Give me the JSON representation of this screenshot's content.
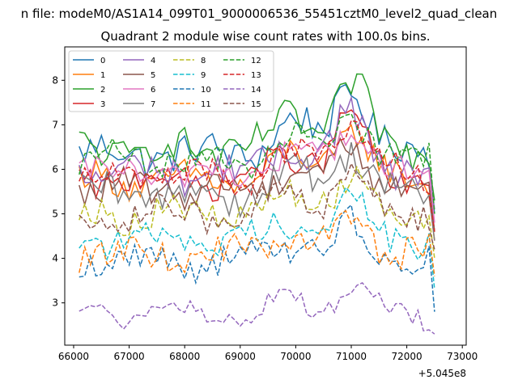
{
  "chart_data": {
    "type": "line",
    "suptitle": "n file: modeM0/AS1A14_099T01_9000006536_55451cztM0_level2_quad_clean",
    "title": "Quadrant 2 module wise count rates with 100.0s bins.",
    "xlabel": "",
    "ylabel": "",
    "offset_text": "+5.045e8",
    "xlim": [
      65840,
      73070
    ],
    "ylim": [
      2.05,
      8.75
    ],
    "xticks": [
      66000,
      67000,
      68000,
      69000,
      70000,
      71000,
      72000,
      73000
    ],
    "xtick_labels": [
      "66000",
      "67000",
      "68000",
      "69000",
      "70000",
      "71000",
      "72000",
      "73000"
    ],
    "yticks": [
      3,
      4,
      5,
      6,
      7,
      8
    ],
    "ytick_labels": [
      "3",
      "4",
      "5",
      "6",
      "7",
      "8"
    ],
    "grid": false,
    "legend_position": "upper-left",
    "legend_columns": 4,
    "x_start": 66100,
    "x_step": 100,
    "series": [
      {
        "name": "0",
        "color": "#1f77b4",
        "style": "solid",
        "base": 6.35,
        "amp": 0.35,
        "peak": 1.5,
        "end": 5.0
      },
      {
        "name": "1",
        "color": "#ff7f0e",
        "style": "solid",
        "base": 5.75,
        "amp": 0.3,
        "peak": 1.15,
        "end": 4.4
      },
      {
        "name": "2",
        "color": "#2ca02c",
        "style": "solid",
        "base": 6.45,
        "amp": 0.35,
        "peak": 1.45,
        "end": 5.3
      },
      {
        "name": "3",
        "color": "#d62728",
        "style": "solid",
        "base": 5.75,
        "amp": 0.3,
        "peak": 1.4,
        "end": 4.6
      },
      {
        "name": "4",
        "color": "#9467bd",
        "style": "solid",
        "base": 5.95,
        "amp": 0.35,
        "peak": 1.25,
        "end": 5.1
      },
      {
        "name": "5",
        "color": "#8c564b",
        "style": "solid",
        "base": 5.55,
        "amp": 0.3,
        "peak": 1.0,
        "end": 4.6
      },
      {
        "name": "6",
        "color": "#e377c2",
        "style": "solid",
        "base": 5.9,
        "amp": 0.3,
        "peak": 1.0,
        "end": 4.8
      },
      {
        "name": "7",
        "color": "#7f7f7f",
        "style": "solid",
        "base": 5.45,
        "amp": 0.35,
        "peak": 1.0,
        "end": 4.4
      },
      {
        "name": "8",
        "color": "#bcbd22",
        "style": "dashed",
        "base": 5.0,
        "amp": 0.3,
        "peak": 0.9,
        "end": 4.0
      },
      {
        "name": "9",
        "color": "#17becf",
        "style": "dashed",
        "base": 4.45,
        "amp": 0.3,
        "peak": 0.8,
        "end": 3.3
      },
      {
        "name": "10",
        "color": "#1f77b4",
        "style": "dashed",
        "base": 3.95,
        "amp": 0.3,
        "peak": 0.8,
        "end": 2.8
      },
      {
        "name": "11",
        "color": "#ff7f0e",
        "style": "dashed",
        "base": 4.1,
        "amp": 0.3,
        "peak": 0.8,
        "end": 3.6
      },
      {
        "name": "12",
        "color": "#2ca02c",
        "style": "dashed",
        "base": 6.2,
        "amp": 0.3,
        "peak": 1.1,
        "end": 5.0
      },
      {
        "name": "13",
        "color": "#d62728",
        "style": "dashed",
        "base": 5.85,
        "amp": 0.3,
        "peak": 1.1,
        "end": 4.6
      },
      {
        "name": "14",
        "color": "#9467bd",
        "style": "dashed",
        "base": 2.75,
        "amp": 0.2,
        "peak": 0.6,
        "end": 2.3
      },
      {
        "name": "15",
        "color": "#8c564b",
        "style": "dashed",
        "base": 5.0,
        "amp": 0.3,
        "peak": 0.9,
        "end": 4.2
      }
    ]
  }
}
